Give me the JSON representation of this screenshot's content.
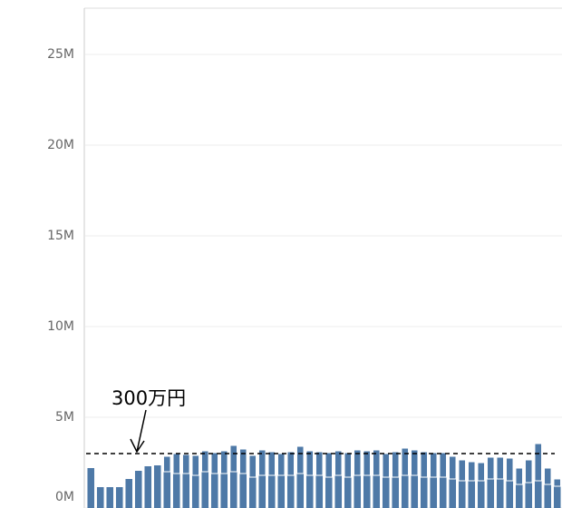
{
  "chart_data": {
    "type": "bar",
    "series": [
      {
        "color": "#4e79a7",
        "values": [
          2.2,
          1.15,
          1.15,
          1.15,
          1.6,
          2.05,
          2.3,
          2.35,
          2.0,
          1.9,
          1.9,
          1.8,
          2.0,
          1.9,
          1.9,
          2.0,
          1.9,
          1.7,
          1.8,
          1.8,
          1.8,
          1.8,
          1.9,
          1.8,
          1.8,
          1.7,
          1.8,
          1.7,
          1.8,
          1.8,
          1.8,
          1.7,
          1.7,
          1.8,
          1.8,
          1.7,
          1.7,
          1.7,
          1.6,
          1.5,
          1.5,
          1.5,
          1.6,
          1.6,
          1.5,
          1.3,
          1.4,
          1.5,
          1.3,
          1.2
        ]
      },
      {
        "color": "#4e79a7",
        "values": [
          0,
          0,
          0,
          0,
          0,
          0,
          0,
          0,
          0.85,
          1.1,
          1.05,
          1.1,
          1.15,
          1.15,
          1.25,
          1.45,
          1.35,
          1.2,
          1.4,
          1.3,
          1.2,
          1.3,
          1.5,
          1.35,
          1.3,
          1.35,
          1.35,
          1.35,
          1.4,
          1.35,
          1.4,
          1.3,
          1.4,
          1.5,
          1.4,
          1.4,
          1.35,
          1.35,
          1.25,
          1.15,
          1.05,
          1.0,
          1.2,
          1.2,
          1.25,
          0.9,
          1.25,
          2.05,
          0.9,
          0.4
        ]
      }
    ],
    "stacked": true,
    "ylim": [
      0,
      27.5
    ],
    "yticks": [
      {
        "value": 0,
        "label": "0M"
      },
      {
        "value": 5,
        "label": "5M"
      },
      {
        "value": 10,
        "label": "10M"
      },
      {
        "value": 15,
        "label": "15M"
      },
      {
        "value": 20,
        "label": "20M"
      },
      {
        "value": 25,
        "label": "25M"
      }
    ],
    "grid": true,
    "reference_line": {
      "value": 3,
      "label": "300万円"
    }
  }
}
